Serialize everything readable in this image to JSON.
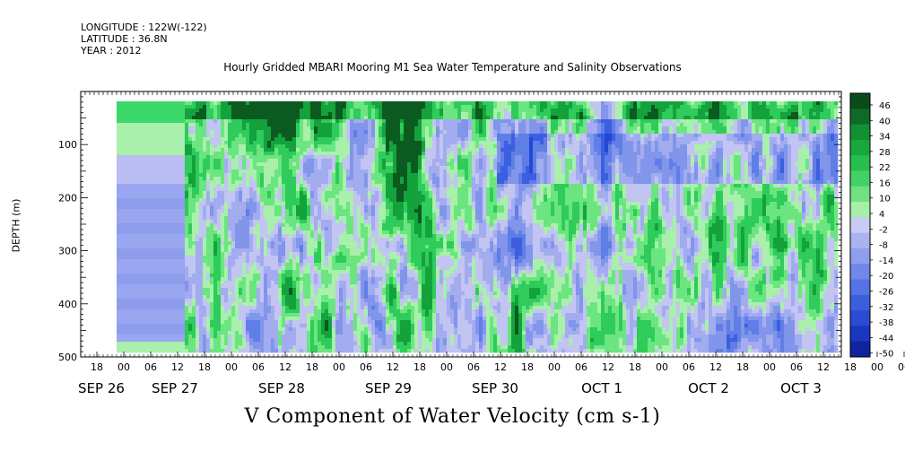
{
  "header": {
    "longitude": "LONGITUDE : 122W(-122)",
    "latitude": "LATITUDE : 36.8N",
    "year": "YEAR : 2012"
  },
  "chart_data": {
    "type": "heatmap",
    "title": "Hourly Gridded MBARI Mooring M1 Sea Water Temperature and Salinity Observations",
    "bottom_title": "V Component of Water Velocity (cm s-1)",
    "ylabel": "DEPTH (m)",
    "yticks": [
      "100",
      "200",
      "300",
      "400",
      "500"
    ],
    "ylim": [
      20,
      500
    ],
    "hour_ticks": [
      "18",
      "00",
      "06",
      "12",
      "18",
      "00",
      "06",
      "12",
      "18",
      "00",
      "06",
      "12",
      "18",
      "00",
      "06",
      "12",
      "18",
      "00",
      "06",
      "12",
      "18",
      "00",
      "06",
      "12",
      "18",
      "00",
      "06",
      "12",
      "18",
      "00",
      "06",
      "12"
    ],
    "date_labels": [
      "SEP 26",
      "SEP 27",
      "SEP 28",
      "SEP 29",
      "SEP 30",
      "OCT  1",
      "OCT  2",
      "OCT  3"
    ],
    "colorbar_labels": [
      "46",
      "40",
      "34",
      "28",
      "22",
      "16",
      "10",
      "4",
      "-2",
      "-8",
      "-14",
      "-20",
      "-26",
      "-32",
      "-38",
      "-44",
      "-50"
    ],
    "colorbar_range": [
      -50,
      52
    ],
    "colors": {
      "positive_strong": "#0c5a22",
      "positive": "#22c15a",
      "positive_light": "#9aed9e",
      "neutral": "#bcc0f0",
      "negative": "#5f7ee8",
      "negative_strong": "#1a3fd0"
    }
  }
}
